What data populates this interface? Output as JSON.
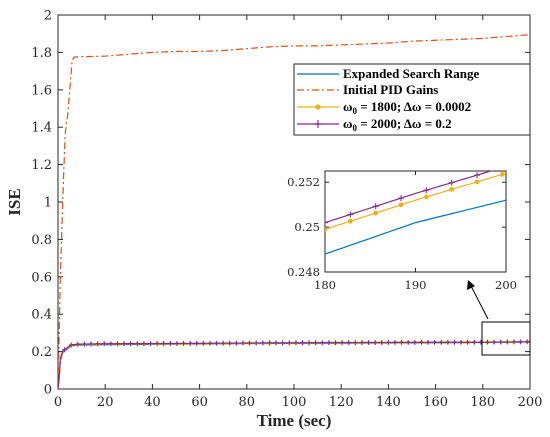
{
  "chart_data": [
    {
      "type": "line",
      "title": "",
      "xlabel": "Time (sec)",
      "ylabel": "ISE",
      "xlim": [
        0,
        200
      ],
      "ylim": [
        0,
        2
      ],
      "xticks": [
        "0",
        "20",
        "40",
        "60",
        "80",
        "100",
        "120",
        "140",
        "160",
        "180",
        "200"
      ],
      "yticks": [
        "0",
        "0.2",
        "0.4",
        "0.6",
        "0.8",
        "1",
        "1.2",
        "1.4",
        "1.6",
        "1.8",
        "2"
      ],
      "grid": false,
      "legend_position": "top-right",
      "series": [
        {
          "name": "Expanded Search Range",
          "color": "#0072BD",
          "style": "solid",
          "x": [
            0,
            0.5,
            1,
            2,
            3,
            4,
            5,
            6,
            8,
            10,
            20,
            40,
            60,
            80,
            100,
            120,
            140,
            160,
            180,
            190,
            200
          ],
          "y": [
            0,
            0.05,
            0.15,
            0.195,
            0.205,
            0.215,
            0.225,
            0.232,
            0.234,
            0.235,
            0.237,
            0.239,
            0.241,
            0.243,
            0.244,
            0.245,
            0.246,
            0.247,
            0.2488,
            0.2502,
            0.2512
          ]
        },
        {
          "name": "Initial PID Gains",
          "color": "#D95319",
          "style": "dashdot",
          "x": [
            0,
            0.5,
            1,
            2,
            3,
            3.5,
            4,
            5,
            6,
            7,
            8,
            10,
            20,
            30,
            40,
            50,
            60,
            70,
            80,
            90,
            100,
            110,
            120,
            130,
            140,
            150,
            160,
            170,
            180,
            190,
            200
          ],
          "y": [
            0,
            0.3,
            0.6,
            1.0,
            1.35,
            1.42,
            1.45,
            1.6,
            1.76,
            1.775,
            1.776,
            1.777,
            1.78,
            1.79,
            1.8,
            1.805,
            1.805,
            1.81,
            1.82,
            1.83,
            1.835,
            1.835,
            1.84,
            1.845,
            1.85,
            1.86,
            1.865,
            1.87,
            1.875,
            1.885,
            1.895
          ]
        },
        {
          "name": "ω0 = 1800; Δω = 0.0002",
          "color": "#EDB120",
          "style": "solid",
          "marker": "dot",
          "x": [
            0,
            0.5,
            1,
            2,
            3,
            4,
            5,
            6,
            8,
            10,
            20,
            40,
            60,
            80,
            100,
            120,
            140,
            160,
            180,
            190,
            200
          ],
          "y": [
            0,
            0.06,
            0.16,
            0.2,
            0.21,
            0.22,
            0.23,
            0.236,
            0.238,
            0.239,
            0.241,
            0.242,
            0.243,
            0.245,
            0.246,
            0.247,
            0.248,
            0.249,
            0.2499,
            0.2512,
            0.2524
          ]
        },
        {
          "name": "ω0 = 2000; Δω = 0.2",
          "color": "#7E2F8E",
          "style": "solid",
          "marker": "plus",
          "x": [
            0,
            0.5,
            1,
            2,
            3,
            4,
            5,
            6,
            8,
            10,
            20,
            40,
            60,
            80,
            100,
            120,
            140,
            160,
            180,
            190,
            200
          ],
          "y": [
            0,
            0.065,
            0.165,
            0.202,
            0.212,
            0.222,
            0.232,
            0.237,
            0.239,
            0.24,
            0.242,
            0.243,
            0.244,
            0.246,
            0.247,
            0.248,
            0.249,
            0.25,
            0.2502,
            0.2515,
            0.2527
          ]
        }
      ],
      "inset": {
        "xlim": [
          180,
          200
        ],
        "ylim": [
          0.248,
          0.2525
        ],
        "xticks": [
          "180",
          "190",
          "200"
        ],
        "yticks": [
          "0.248",
          "0.25",
          "0.252"
        ]
      }
    }
  ],
  "legend": {
    "entries": [
      {
        "label": "Expanded Search Range"
      },
      {
        "label": "Initial PID Gains"
      },
      {
        "label_base": "ω",
        "label_sub": "0",
        "label_rest": " = 1800; Δω = 0.0002"
      },
      {
        "label_base": "ω",
        "label_sub": "0",
        "label_rest": " = 2000; Δω = 0.2"
      }
    ]
  }
}
